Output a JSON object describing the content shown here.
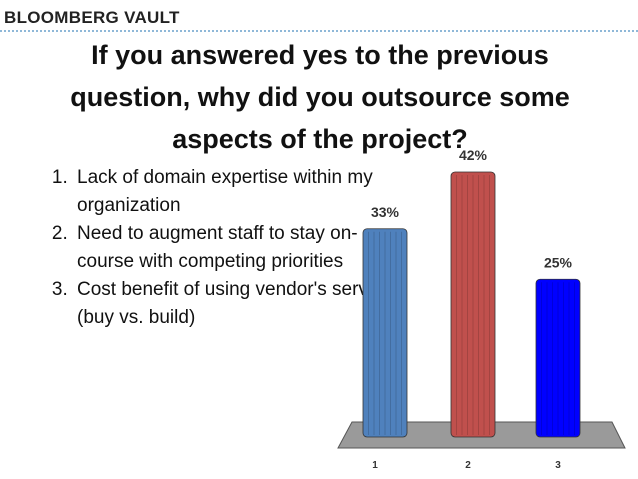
{
  "header": {
    "brand": "BLOOMBERG VAULT"
  },
  "title": "If you answered yes to the previous question, why did you outsource some aspects of the project?",
  "list": [
    "Lack of domain expertise within my organization",
    "Need to augment staff to stay on-course with competing priorities",
    "Cost benefit of using vendor's services (buy vs. build)"
  ],
  "chart_data": {
    "type": "bar",
    "categories": [
      "1",
      "2",
      "3"
    ],
    "values": [
      33,
      42,
      25
    ],
    "value_labels": [
      "33%",
      "42%",
      "25%"
    ],
    "colors": [
      "#4f81bd",
      "#c0504d",
      "#0000ff"
    ]
  }
}
